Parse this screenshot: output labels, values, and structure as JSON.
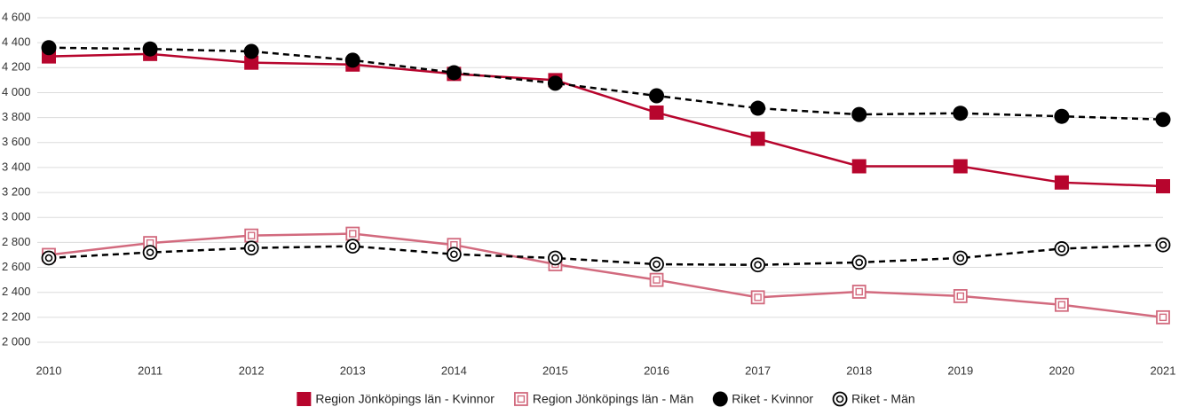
{
  "chart_data": {
    "type": "line",
    "categories": [
      "2010",
      "2011",
      "2012",
      "2013",
      "2014",
      "2015",
      "2016",
      "2017",
      "2018",
      "2019",
      "2020",
      "2021"
    ],
    "ylim": [
      2000,
      4600
    ],
    "yticks": [
      {
        "value": 2000,
        "label": "2 000"
      },
      {
        "value": 2200,
        "label": "2 200"
      },
      {
        "value": 2400,
        "label": "2 400"
      },
      {
        "value": 2600,
        "label": "2 600"
      },
      {
        "value": 2800,
        "label": "2 800"
      },
      {
        "value": 3000,
        "label": "3 000"
      },
      {
        "value": 3200,
        "label": "3 200"
      },
      {
        "value": 3400,
        "label": "3 400"
      },
      {
        "value": 3600,
        "label": "3 600"
      },
      {
        "value": 3800,
        "label": "3 800"
      },
      {
        "value": 4000,
        "label": "4 000"
      },
      {
        "value": 4200,
        "label": "4 200"
      },
      {
        "value": 4400,
        "label": "4 400"
      },
      {
        "value": 4600,
        "label": "4 600"
      }
    ],
    "grid": true,
    "legend": "bottom",
    "series": [
      {
        "name": "Region Jönköpings län - Kvinnor",
        "color": "#b7052d",
        "marker": "square",
        "dashed": false,
        "values": [
          4290,
          4310,
          4240,
          4225,
          4150,
          4100,
          3840,
          3630,
          3410,
          3410,
          3280,
          3250
        ]
      },
      {
        "name": "Region Jönköpings län - Män",
        "color": "#d26a7e",
        "marker": "square-open",
        "dashed": false,
        "values": [
          2700,
          2795,
          2855,
          2870,
          2780,
          2625,
          2500,
          2360,
          2405,
          2370,
          2300,
          2200
        ]
      },
      {
        "name": "Riket - Kvinnor",
        "color": "#000000",
        "marker": "circle",
        "dashed": true,
        "values": [
          4360,
          4350,
          4330,
          4260,
          4160,
          4075,
          3975,
          3875,
          3825,
          3835,
          3810,
          3785
        ]
      },
      {
        "name": "Riket - Män",
        "color": "#000000",
        "marker": "circle-open",
        "dashed": true,
        "values": [
          2675,
          2720,
          2755,
          2770,
          2705,
          2675,
          2625,
          2620,
          2640,
          2675,
          2750,
          2780
        ]
      }
    ]
  }
}
